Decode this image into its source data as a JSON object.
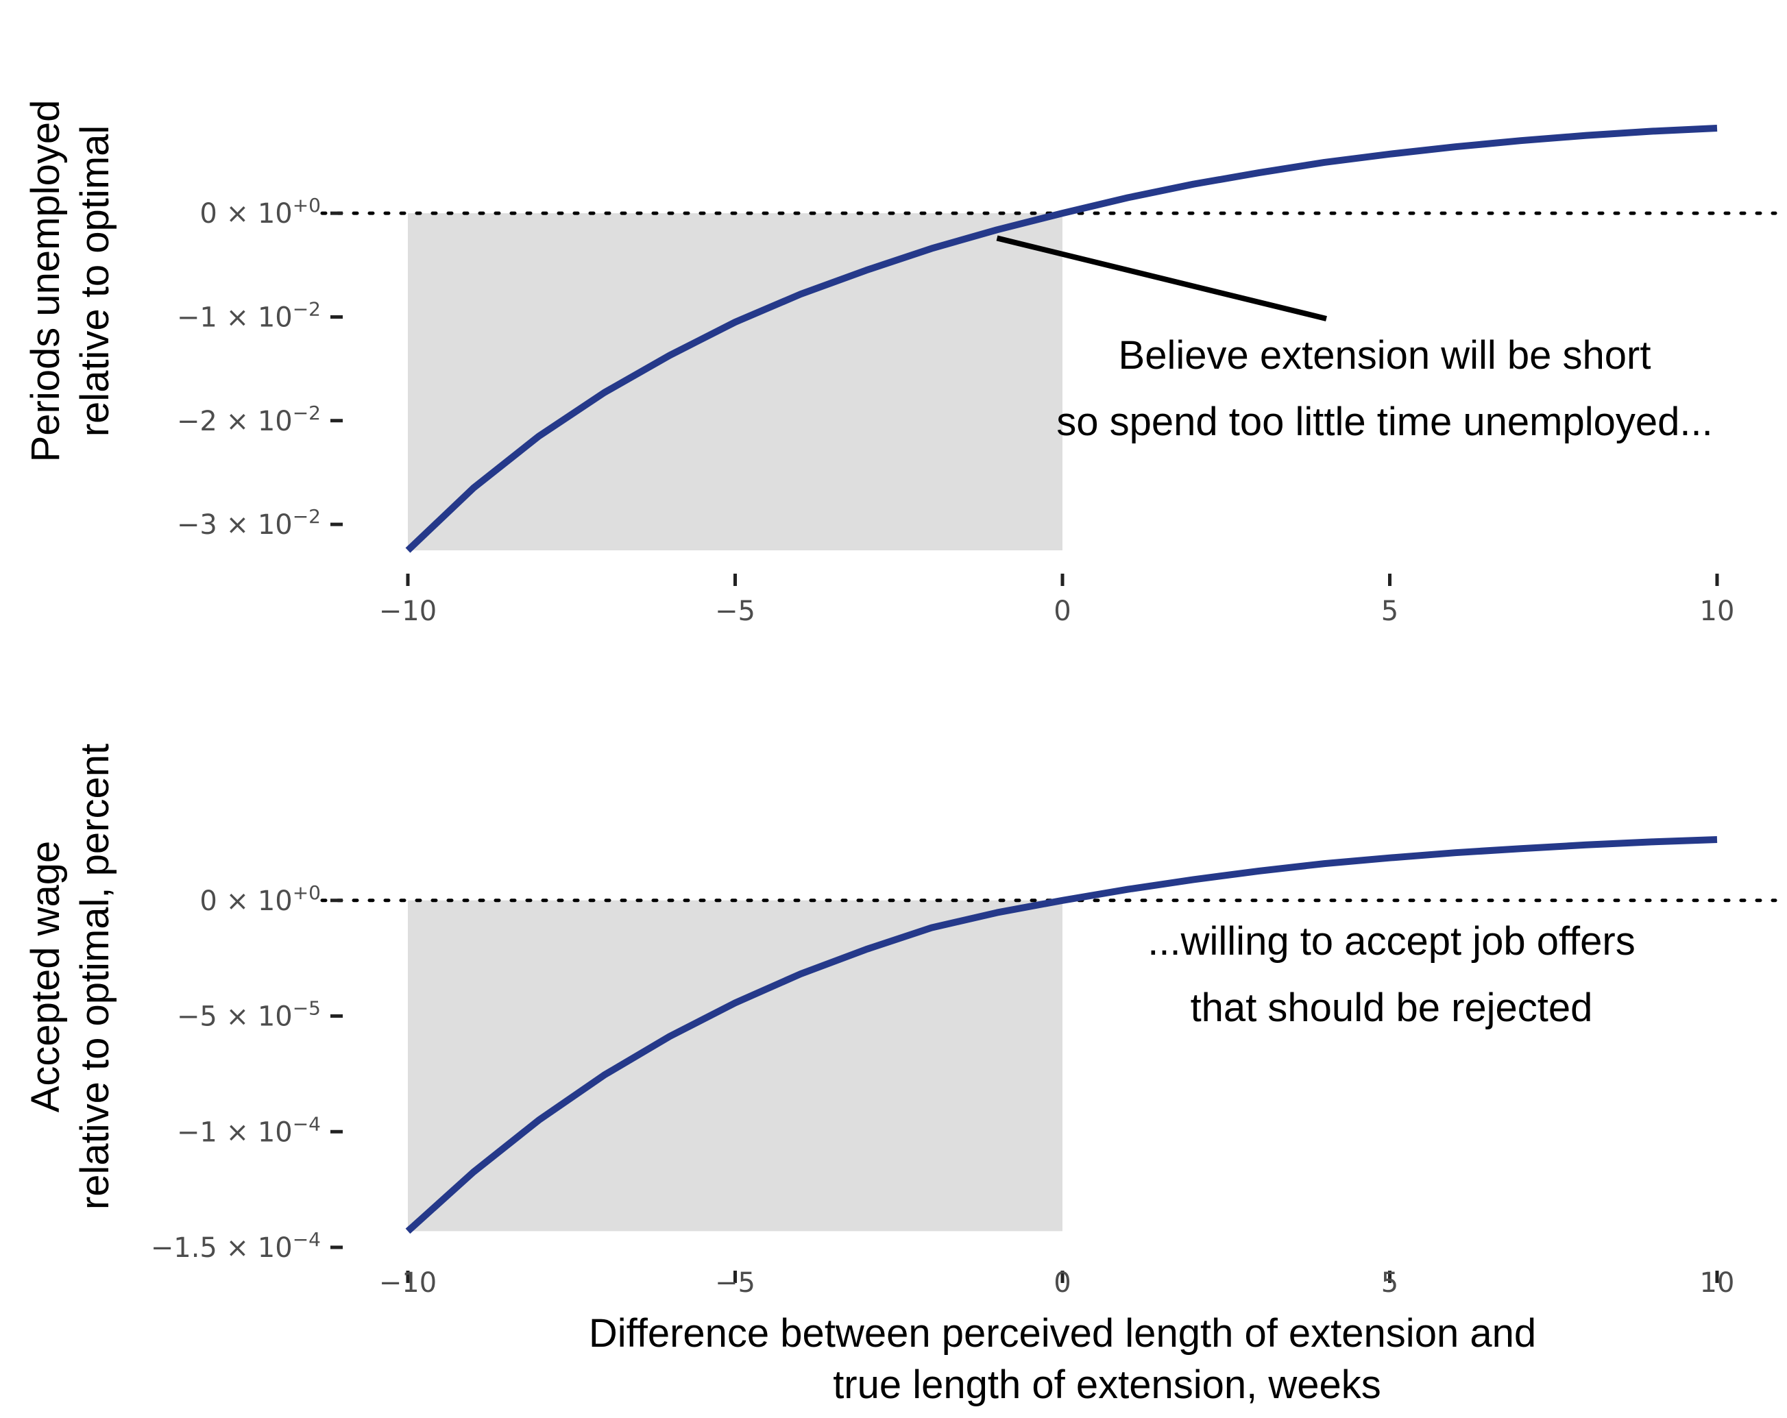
{
  "chart_data": [
    {
      "type": "line",
      "ylabel": [
        "Periods unemployed",
        "relative to optimal"
      ],
      "xlabel": "",
      "x": [
        -10,
        -9,
        -8,
        -7,
        -6,
        -5,
        -4,
        -3,
        -2,
        -1,
        0,
        1,
        2,
        3,
        4,
        5,
        6,
        7,
        8,
        9,
        10
      ],
      "series": [
        {
          "values": [
            -0.0325,
            -0.0265,
            -0.0215,
            -0.0173,
            -0.0137,
            -0.0105,
            -0.0078,
            -0.0055,
            -0.0034,
            -0.0016,
            0,
            0.0015,
            0.0028,
            0.0039,
            0.0049,
            0.0057,
            0.0064,
            0.007,
            0.0075,
            0.0079,
            0.0082
          ]
        }
      ],
      "xlim": [
        -10,
        10
      ],
      "ylim": [
        -0.0325,
        0.0082
      ],
      "xticks": [
        -10,
        -5,
        0,
        5,
        10
      ],
      "xtick_labels": [
        "−10",
        "−5",
        "0",
        "5",
        "10"
      ],
      "yticks": [
        0,
        -0.01,
        -0.02,
        -0.03
      ],
      "ytick_labels": [
        {
          "mant": "0 × 10",
          "exp": "+0"
        },
        {
          "mant": "−1 × 10",
          "exp": "−2"
        },
        {
          "mant": "−2 × 10",
          "exp": "−2"
        },
        {
          "mant": "−3 × 10",
          "exp": "−2"
        }
      ],
      "reference_line": 0,
      "shaded_region": {
        "x": [
          -10,
          0
        ],
        "y": [
          -0.0325,
          0
        ]
      },
      "annotation": [
        "Believe extension will be short",
        "so spend too little time unemployed..."
      ],
      "annotation_pointer": {
        "x": -1,
        "y": -0.0024
      },
      "grid": false,
      "line_color": "#25398a",
      "shade_color": "#dedede"
    },
    {
      "type": "line",
      "ylabel": [
        "Accepted wage",
        "relative to optimal, percent"
      ],
      "xlabel": [
        "Difference between perceived length of extension and",
        "true length of extension, weeks"
      ],
      "x": [
        -10,
        -9,
        -8,
        -7,
        -6,
        -5,
        -4,
        -3,
        -2,
        -1,
        0,
        1,
        2,
        3,
        4,
        5,
        6,
        7,
        8,
        9,
        10
      ],
      "series": [
        {
          "values": [
            -0.000143,
            -0.0001175,
            -9.5e-05,
            -7.55e-05,
            -5.88e-05,
            -4.43e-05,
            -3.18e-05,
            -2.12e-05,
            -1.18e-05,
            -5.3e-06,
            0,
            4.8e-06,
            9e-06,
            1.27e-05,
            1.59e-05,
            1.84e-05,
            2.06e-05,
            2.24e-05,
            2.4e-05,
            2.53e-05,
            2.63e-05
          ]
        }
      ],
      "xlim": [
        -10,
        10
      ],
      "ylim": [
        -0.00015,
        2.63e-05
      ],
      "xticks": [
        -10,
        -5,
        0,
        5,
        10
      ],
      "xtick_labels": [
        "−10",
        "−5",
        "0",
        "5",
        "10"
      ],
      "yticks": [
        0,
        -5e-05,
        -0.0001,
        -0.00015
      ],
      "ytick_labels": [
        {
          "mant": "0 × 10",
          "exp": "+0"
        },
        {
          "mant": "−5 × 10",
          "exp": "−5"
        },
        {
          "mant": "−1 × 10",
          "exp": "−4"
        },
        {
          "mant": "−1.5 × 10",
          "exp": "−4"
        }
      ],
      "reference_line": 0,
      "shaded_region": {
        "x": [
          -10,
          0
        ],
        "y": [
          -0.000143,
          0
        ]
      },
      "annotation": [
        "...willing to accept job offers",
        "that should be rejected"
      ],
      "grid": false,
      "line_color": "#25398a",
      "shade_color": "#dedede"
    }
  ]
}
